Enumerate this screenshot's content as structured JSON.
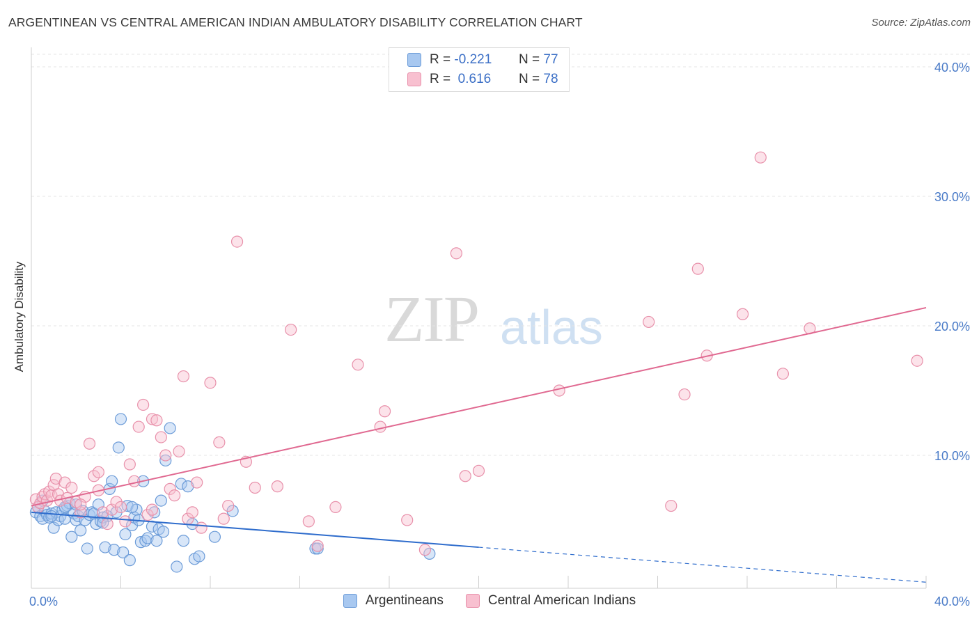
{
  "header": {
    "title": "ARGENTINEAN VS CENTRAL AMERICAN INDIAN AMBULATORY DISABILITY CORRELATION CHART",
    "source": "Source: ZipAtlas.com"
  },
  "watermark": {
    "part1": "ZIP",
    "part2": "atlas"
  },
  "legend_top": {
    "rows": [
      {
        "r_label": "R =",
        "r_value": "-0.221",
        "n_label": "N =",
        "n_value": "77",
        "color": "#a8c8f0",
        "border": "#6b9bd8"
      },
      {
        "r_label": "R =",
        "r_value": "0.616",
        "n_label": "N =",
        "n_value": "78",
        "color": "#f8c0d0",
        "border": "#e890aa"
      }
    ]
  },
  "legend_bottom": {
    "items": [
      {
        "label": "Argentineans",
        "color": "#a8c8f0",
        "border": "#6b9bd8"
      },
      {
        "label": "Central American Indians",
        "color": "#f8c0d0",
        "border": "#e890aa"
      }
    ]
  },
  "chart_data": {
    "type": "scatter",
    "title": "ARGENTINEAN VS CENTRAL AMERICAN INDIAN AMBULATORY DISABILITY CORRELATION CHART",
    "xlabel": "",
    "ylabel": "Ambulatory Disability",
    "xlim": [
      0,
      40
    ],
    "ylim": [
      0,
      40
    ],
    "x_ticks": [
      {
        "value": 0,
        "label": "0.0%"
      },
      {
        "value": 40,
        "label": "40.0%"
      }
    ],
    "y_ticks": [
      {
        "value": 10,
        "label": "10.0%"
      },
      {
        "value": 20,
        "label": "20.0%"
      },
      {
        "value": 30,
        "label": "30.0%"
      },
      {
        "value": 40,
        "label": "40.0%"
      }
    ],
    "series": [
      {
        "name": "Argentineans",
        "color": "#6b9bd8",
        "fill": "#a8c8f0",
        "line_color": "#2e6ccc",
        "trend": {
          "x0": 0,
          "y0": 5.6,
          "x1": 20,
          "y1": 2.9,
          "dash_to_x": 40,
          "dash_to_y": 0.2
        },
        "points": [
          [
            0.2,
            5.6
          ],
          [
            0.3,
            6.0
          ],
          [
            0.4,
            5.3
          ],
          [
            0.5,
            5.1
          ],
          [
            0.6,
            5.7
          ],
          [
            0.7,
            5.4
          ],
          [
            0.8,
            5.2
          ],
          [
            0.9,
            5.5
          ],
          [
            1.0,
            4.4
          ],
          [
            1.1,
            5.6
          ],
          [
            1.2,
            5.0
          ],
          [
            1.3,
            5.3
          ],
          [
            1.4,
            5.8
          ],
          [
            1.5,
            5.1
          ],
          [
            1.6,
            6.1
          ],
          [
            1.7,
            6.3
          ],
          [
            1.8,
            3.7
          ],
          [
            1.9,
            5.5
          ],
          [
            2.0,
            5.0
          ],
          [
            2.1,
            5.3
          ],
          [
            2.2,
            4.2
          ],
          [
            2.3,
            5.7
          ],
          [
            2.4,
            5.0
          ],
          [
            2.5,
            2.8
          ],
          [
            2.6,
            5.4
          ],
          [
            2.7,
            5.6
          ],
          [
            2.8,
            5.5
          ],
          [
            2.9,
            4.7
          ],
          [
            3.0,
            6.2
          ],
          [
            3.1,
            4.9
          ],
          [
            3.2,
            5.2
          ],
          [
            3.3,
            2.9
          ],
          [
            3.4,
            5.3
          ],
          [
            3.5,
            7.4
          ],
          [
            3.6,
            8.0
          ],
          [
            3.7,
            2.7
          ],
          [
            3.8,
            5.6
          ],
          [
            3.9,
            10.6
          ],
          [
            4.0,
            12.8
          ],
          [
            4.1,
            2.5
          ],
          [
            4.2,
            3.9
          ],
          [
            4.3,
            6.1
          ],
          [
            4.4,
            1.9
          ],
          [
            4.5,
            4.6
          ],
          [
            4.6,
            5.2
          ],
          [
            4.7,
            5.8
          ],
          [
            4.8,
            5.0
          ],
          [
            4.9,
            3.3
          ],
          [
            5.0,
            8.0
          ],
          [
            5.1,
            3.4
          ],
          [
            5.2,
            3.6
          ],
          [
            5.4,
            4.5
          ],
          [
            5.5,
            5.6
          ],
          [
            5.6,
            3.4
          ],
          [
            5.7,
            4.3
          ],
          [
            5.8,
            6.5
          ],
          [
            5.9,
            4.1
          ],
          [
            6.0,
            9.6
          ],
          [
            6.2,
            12.1
          ],
          [
            6.5,
            1.4
          ],
          [
            6.7,
            7.8
          ],
          [
            6.8,
            3.4
          ],
          [
            7.0,
            7.6
          ],
          [
            7.2,
            4.7
          ],
          [
            7.3,
            2.0
          ],
          [
            7.5,
            2.2
          ],
          [
            8.2,
            3.7
          ],
          [
            9.0,
            5.7
          ],
          [
            12.7,
            2.8
          ],
          [
            12.8,
            2.8
          ],
          [
            17.8,
            2.4
          ],
          [
            1.5,
            6.0
          ],
          [
            0.9,
            5.3
          ],
          [
            2.0,
            6.2
          ],
          [
            3.2,
            4.8
          ],
          [
            4.5,
            6.0
          ],
          [
            0.5,
            6.5
          ]
        ]
      },
      {
        "name": "Central American Indians",
        "color": "#e890aa",
        "fill": "#f8c0d0",
        "line_color": "#e06890",
        "trend": {
          "x0": 0,
          "y0": 6.1,
          "x1": 40,
          "y1": 21.4
        },
        "points": [
          [
            0.2,
            6.6
          ],
          [
            0.3,
            6.0
          ],
          [
            0.4,
            6.3
          ],
          [
            0.5,
            6.8
          ],
          [
            0.6,
            7.0
          ],
          [
            0.7,
            6.5
          ],
          [
            0.8,
            7.2
          ],
          [
            0.9,
            6.9
          ],
          [
            1.0,
            7.7
          ],
          [
            1.1,
            8.2
          ],
          [
            1.2,
            7.0
          ],
          [
            1.3,
            6.5
          ],
          [
            1.5,
            7.9
          ],
          [
            1.6,
            6.7
          ],
          [
            1.8,
            7.5
          ],
          [
            2.0,
            6.4
          ],
          [
            2.2,
            5.6
          ],
          [
            2.4,
            6.8
          ],
          [
            2.6,
            10.9
          ],
          [
            2.8,
            8.4
          ],
          [
            3.0,
            7.3
          ],
          [
            3.2,
            5.6
          ],
          [
            3.4,
            4.7
          ],
          [
            3.6,
            5.8
          ],
          [
            3.8,
            6.4
          ],
          [
            4.0,
            6.0
          ],
          [
            4.2,
            4.9
          ],
          [
            4.4,
            9.3
          ],
          [
            4.6,
            8.0
          ],
          [
            4.8,
            12.2
          ],
          [
            5.0,
            13.9
          ],
          [
            5.2,
            5.4
          ],
          [
            5.4,
            12.8
          ],
          [
            5.6,
            12.7
          ],
          [
            5.8,
            11.4
          ],
          [
            6.0,
            10.0
          ],
          [
            6.2,
            7.4
          ],
          [
            6.4,
            6.9
          ],
          [
            6.6,
            10.3
          ],
          [
            6.8,
            16.1
          ],
          [
            7.0,
            5.1
          ],
          [
            7.2,
            5.6
          ],
          [
            7.4,
            7.9
          ],
          [
            7.6,
            4.4
          ],
          [
            8.0,
            15.6
          ],
          [
            8.4,
            11.0
          ],
          [
            8.6,
            5.1
          ],
          [
            8.8,
            6.1
          ],
          [
            9.2,
            26.5
          ],
          [
            9.6,
            9.5
          ],
          [
            10.0,
            7.5
          ],
          [
            11.0,
            7.6
          ],
          [
            11.6,
            19.7
          ],
          [
            12.4,
            4.9
          ],
          [
            12.8,
            3.0
          ],
          [
            13.6,
            6.0
          ],
          [
            14.6,
            17.0
          ],
          [
            15.6,
            12.2
          ],
          [
            15.8,
            13.4
          ],
          [
            16.8,
            5.0
          ],
          [
            17.6,
            2.7
          ],
          [
            19.0,
            25.6
          ],
          [
            19.4,
            8.4
          ],
          [
            20.0,
            8.8
          ],
          [
            23.6,
            15.0
          ],
          [
            27.6,
            20.3
          ],
          [
            28.6,
            6.1
          ],
          [
            29.2,
            14.7
          ],
          [
            29.8,
            24.4
          ],
          [
            30.2,
            17.7
          ],
          [
            31.8,
            20.9
          ],
          [
            32.6,
            33.0
          ],
          [
            33.6,
            16.3
          ],
          [
            34.8,
            19.8
          ],
          [
            39.6,
            17.3
          ],
          [
            5.4,
            5.8
          ],
          [
            3.0,
            8.7
          ],
          [
            2.2,
            6.2
          ]
        ]
      }
    ]
  }
}
